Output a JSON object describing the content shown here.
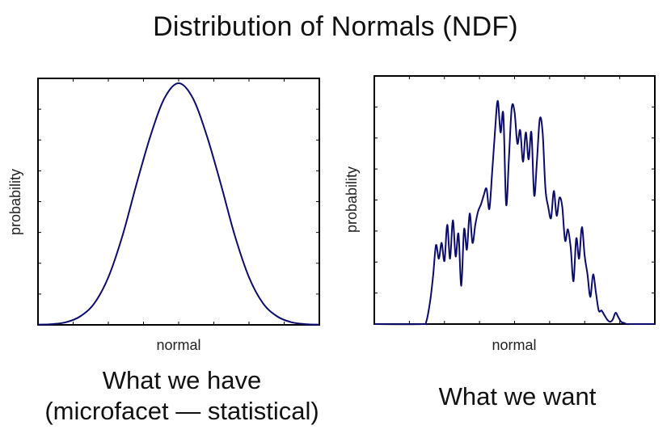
{
  "slide": {
    "title": "Distribution of Normals (NDF)"
  },
  "captions": {
    "left_line1": "What we have",
    "left_line2": "(microfacet — statistical)",
    "right": "What we want"
  },
  "colors": {
    "curve": "#0b0b6e",
    "axes": "#000000",
    "background": "#ffffff"
  },
  "chart_data": [
    {
      "type": "line",
      "title": "",
      "xlabel": "normal",
      "ylabel": "probability",
      "xlim": [
        0,
        1
      ],
      "ylim": [
        0,
        1.02
      ],
      "tick_labels_shown": false,
      "grid": false,
      "series": [
        {
          "x": [
            0.0,
            0.05,
            0.1,
            0.15,
            0.2,
            0.25,
            0.3,
            0.35,
            0.4,
            0.45,
            0.5,
            0.55,
            0.6,
            0.65,
            0.7,
            0.75,
            0.8,
            0.85,
            0.9,
            0.95,
            1.0
          ],
          "y": [
            0.001,
            0.003,
            0.011,
            0.035,
            0.089,
            0.197,
            0.368,
            0.582,
            0.783,
            0.939,
            1.0,
            0.939,
            0.783,
            0.582,
            0.368,
            0.197,
            0.089,
            0.035,
            0.011,
            0.003,
            0.001
          ]
        }
      ]
    },
    {
      "type": "line",
      "title": "",
      "xlabel": "normal",
      "ylabel": "probability",
      "xlim": [
        0,
        1
      ],
      "ylim": [
        0,
        1.1
      ],
      "tick_labels_shown": false,
      "grid": false,
      "series": [
        {
          "x": [
            0.0,
            0.17,
            0.185,
            0.2,
            0.21,
            0.22,
            0.23,
            0.24,
            0.25,
            0.26,
            0.27,
            0.28,
            0.29,
            0.3,
            0.31,
            0.32,
            0.33,
            0.34,
            0.35,
            0.36,
            0.37,
            0.38,
            0.39,
            0.4,
            0.41,
            0.42,
            0.43,
            0.44,
            0.45,
            0.46,
            0.47,
            0.48,
            0.49,
            0.5,
            0.51,
            0.52,
            0.53,
            0.54,
            0.55,
            0.56,
            0.57,
            0.58,
            0.59,
            0.6,
            0.61,
            0.62,
            0.63,
            0.64,
            0.65,
            0.66,
            0.67,
            0.68,
            0.69,
            0.7,
            0.71,
            0.72,
            0.73,
            0.74,
            0.75,
            0.76,
            0.77,
            0.78,
            0.79,
            0.8,
            0.81,
            0.82,
            0.83,
            0.84,
            0.85,
            0.86,
            0.87,
            0.88,
            0.89,
            0.9,
            0.92,
            0.95,
            1.0
          ],
          "y": [
            0.0,
            0.0,
            0.01,
            0.11,
            0.22,
            0.35,
            0.29,
            0.36,
            0.28,
            0.44,
            0.29,
            0.46,
            0.3,
            0.4,
            0.17,
            0.42,
            0.33,
            0.49,
            0.36,
            0.44,
            0.5,
            0.53,
            0.57,
            0.6,
            0.51,
            0.67,
            0.85,
            0.99,
            0.85,
            0.93,
            0.53,
            0.74,
            0.96,
            0.94,
            0.8,
            0.86,
            0.72,
            0.85,
            0.73,
            0.85,
            0.57,
            0.73,
            0.91,
            0.85,
            0.6,
            0.52,
            0.47,
            0.59,
            0.48,
            0.56,
            0.52,
            0.37,
            0.42,
            0.34,
            0.19,
            0.38,
            0.29,
            0.43,
            0.3,
            0.22,
            0.12,
            0.22,
            0.14,
            0.06,
            0.06,
            0.04,
            0.02,
            0.01,
            0.02,
            0.05,
            0.03,
            0.01,
            0.005,
            0.0,
            0.0,
            0.0,
            0.0
          ]
        }
      ]
    }
  ]
}
